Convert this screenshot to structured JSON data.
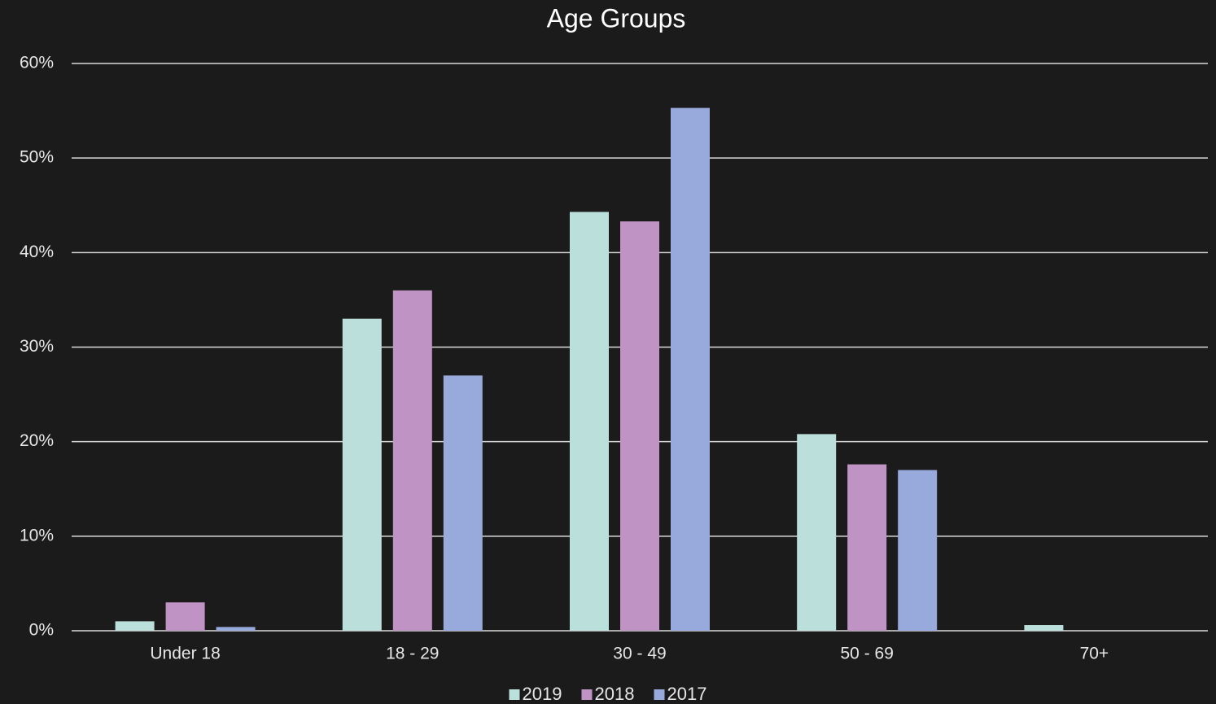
{
  "chart_data": {
    "type": "bar",
    "title": "Age Groups",
    "categories": [
      "Under 18",
      "18 - 29",
      "30 - 49",
      "50 - 69",
      "70+"
    ],
    "series": [
      {
        "name": "2019",
        "color": "#bbdfdb",
        "values": [
          1.0,
          33.0,
          44.3,
          20.8,
          0.6
        ]
      },
      {
        "name": "2018",
        "color": "#bf94c4",
        "values": [
          3.0,
          36.0,
          43.3,
          17.6,
          0
        ]
      },
      {
        "name": "2017",
        "color": "#98a9dc",
        "values": [
          0.4,
          27.0,
          55.3,
          17.0,
          0
        ]
      }
    ],
    "ylim": [
      0,
      60
    ],
    "yticks": [
      {
        "value": 0,
        "label": "0%"
      },
      {
        "value": 10,
        "label": "10%"
      },
      {
        "value": 20,
        "label": "20%"
      },
      {
        "value": 30,
        "label": "30%"
      },
      {
        "value": 40,
        "label": "40%"
      },
      {
        "value": 50,
        "label": "50%"
      },
      {
        "value": 60,
        "label": "60%"
      }
    ],
    "grid": true,
    "legend": "bottom"
  }
}
